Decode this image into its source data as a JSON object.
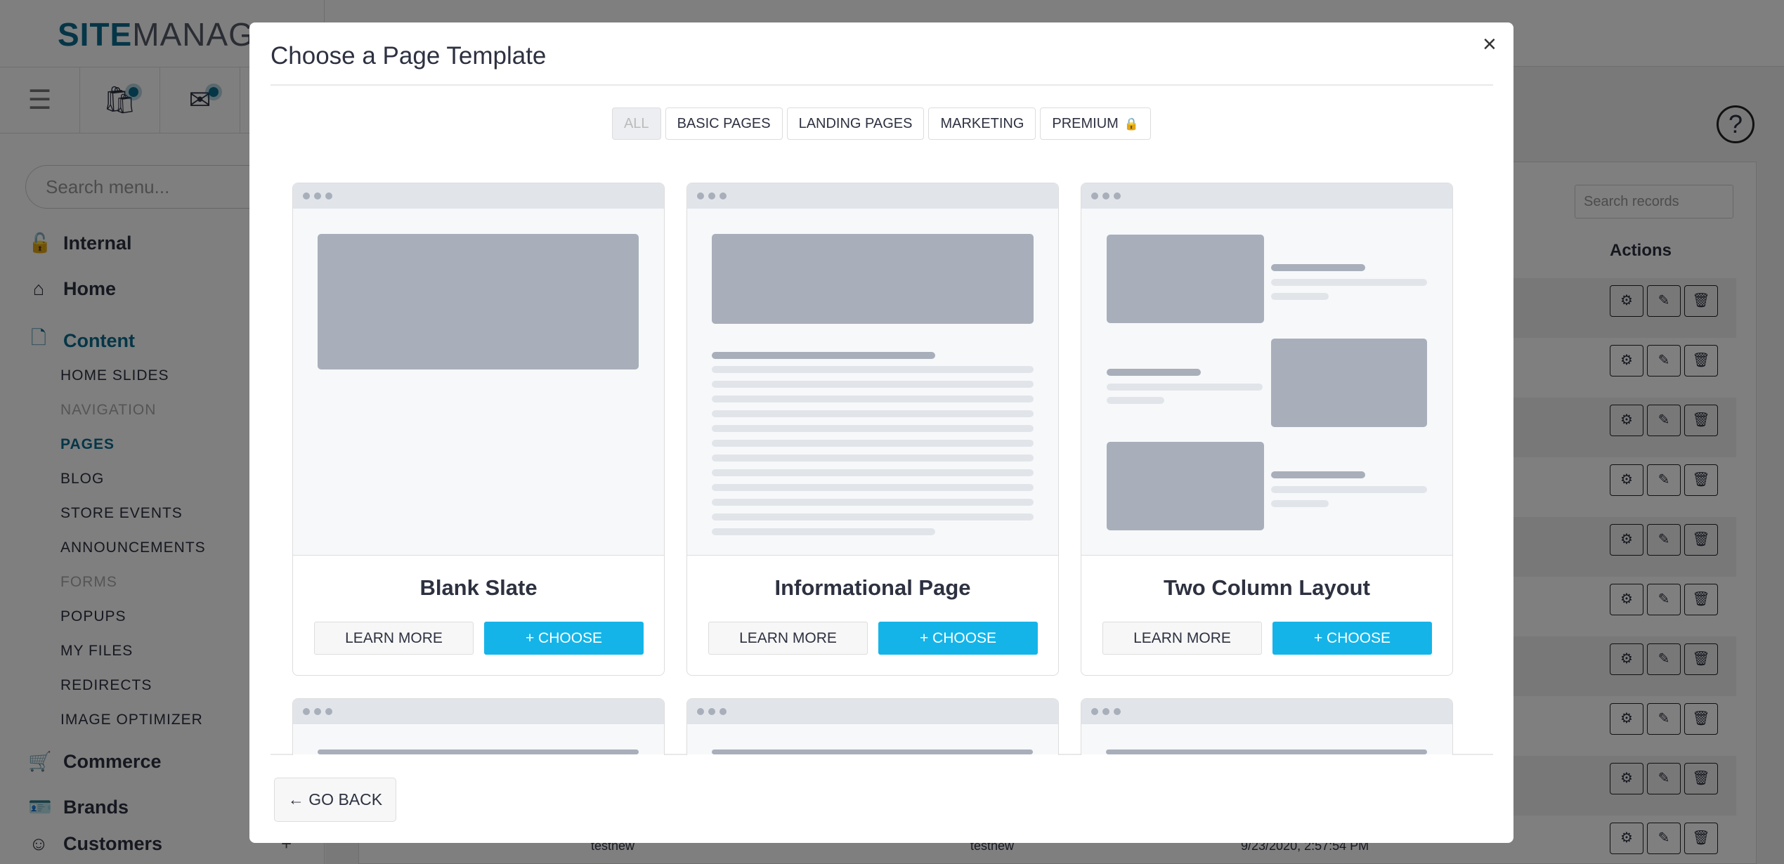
{
  "sidebar": {
    "logo_bold": "SITE",
    "logo_light": "MANAGE",
    "search_placeholder": "Search menu...",
    "accent": "#0b6d8f",
    "items": [
      {
        "label": "Internal",
        "icon": "lock-icon",
        "glyph": "🔓"
      },
      {
        "label": "Home",
        "icon": "home-icon",
        "glyph": "⌂"
      },
      {
        "label": "Content",
        "icon": "document-icon",
        "glyph": "🗋",
        "active": true
      },
      {
        "label": "Commerce",
        "icon": "cart-icon",
        "glyph": "🛒"
      },
      {
        "label": "Brands",
        "icon": "id-card-icon",
        "glyph": "🪪"
      },
      {
        "label": "Customers",
        "icon": "smiley-icon",
        "glyph": "☺"
      }
    ],
    "content_subitems": [
      {
        "label": "HOME SLIDES"
      },
      {
        "label": "NAVIGATION",
        "disabled": true
      },
      {
        "label": "PAGES",
        "active": true
      },
      {
        "label": "BLOG"
      },
      {
        "label": "STORE EVENTS"
      },
      {
        "label": "ANNOUNCEMENTS"
      },
      {
        "label": "FORMS",
        "disabled": true
      },
      {
        "label": "POPUPS"
      },
      {
        "label": "MY FILES"
      },
      {
        "label": "REDIRECTS"
      },
      {
        "label": "IMAGE OPTIMIZER"
      }
    ],
    "customers_expand": "+"
  },
  "main": {
    "help": "?",
    "search_records_placeholder": "Search records",
    "actions_header": "Actions",
    "last_row": {
      "name": "testnew",
      "slug": "testnew",
      "date": "9/23/2020, 2:57:54 PM"
    }
  },
  "modal": {
    "title": "Choose a Page Template",
    "close": "×",
    "filters": [
      {
        "label": "ALL",
        "active": true
      },
      {
        "label": "BASIC PAGES"
      },
      {
        "label": "LANDING PAGES"
      },
      {
        "label": "MARKETING"
      },
      {
        "label": "PREMIUM",
        "locked": true
      }
    ],
    "lock_glyph": "🔒",
    "templates": [
      {
        "title": "Blank Slate",
        "preview": "blank"
      },
      {
        "title": "Informational Page",
        "preview": "info"
      },
      {
        "title": "Two Column Layout",
        "preview": "twocol"
      },
      {
        "title": "",
        "preview": "blank"
      },
      {
        "title": "",
        "preview": "blank"
      },
      {
        "title": "",
        "preview": "blank"
      }
    ],
    "learn_more": "LEARN MORE",
    "choose": "+ CHOOSE",
    "choose_color": "#15b4e8",
    "go_back": "← GO BACK"
  }
}
